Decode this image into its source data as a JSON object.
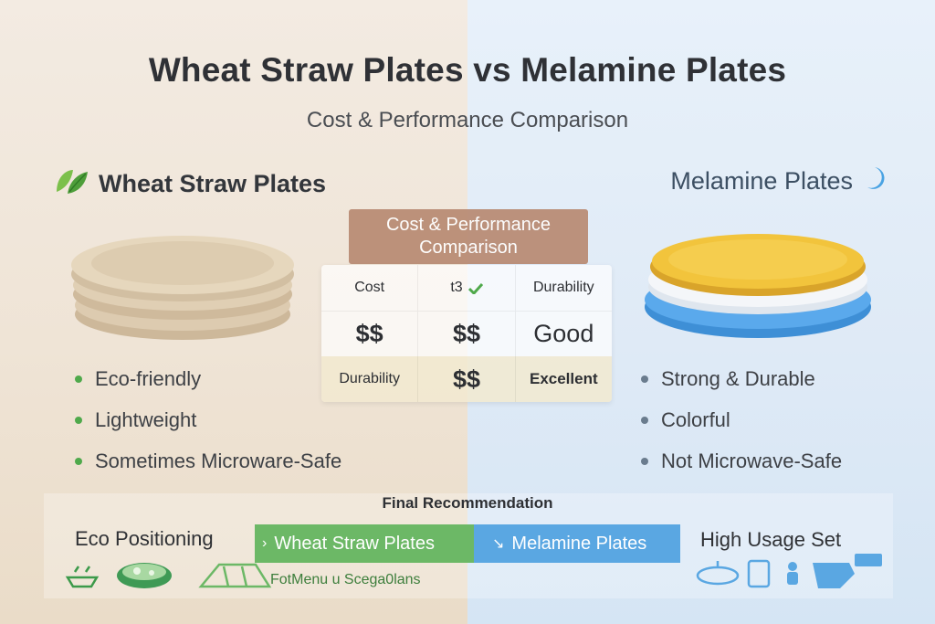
{
  "title": "Wheat Straw Plates vs Melamine Plates",
  "subtitle": "Cost & Performance Comparison",
  "left": {
    "heading": "Wheat Straw Plates",
    "icon": "leaf-icon",
    "bullets": [
      "Eco-friendly",
      "Lightweight",
      "Sometimes Microware-Safe"
    ]
  },
  "right": {
    "heading": "Melamine Plates",
    "icon": "moon-icon",
    "bullets": [
      "Strong & Durable",
      "Colorful",
      "Not Microwave-Safe"
    ]
  },
  "table": {
    "label": "Cost & Performance Comparison",
    "rows": [
      [
        "Cost",
        "t3",
        "Durability"
      ],
      [
        "$$",
        "$$",
        "Good"
      ],
      [
        "Durability",
        "$$",
        "Excellent"
      ]
    ]
  },
  "recommendation": {
    "title": "Final Recommendation",
    "eco_label": "Eco Positioning",
    "high_label": "High Usage Set",
    "wheat_button": "Wheat Straw Plates",
    "melamine_button": "Melamine Plates",
    "mixed_text": "FotMenu u Scega0lans"
  },
  "colors": {
    "wheat_green": "#6cb866",
    "melamine_blue": "#5aa7e2",
    "table_label_bg": "#b98b73"
  }
}
